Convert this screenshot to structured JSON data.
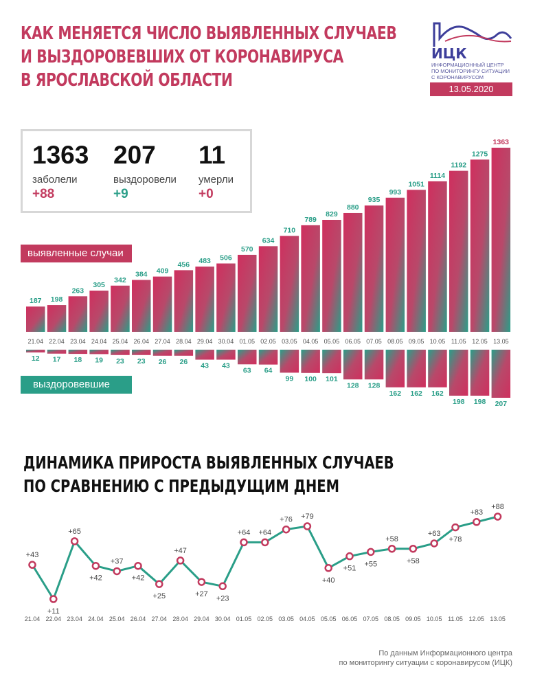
{
  "header": {
    "title_lines": [
      "КАК МЕНЯЕТСЯ ЧИСЛО ВЫЯВЛЕННЫХ СЛУЧАЕВ",
      "И ВЫЗДОРОВЕВШИХ ОТ КОРОНАВИРУСА",
      "В ЯРОСЛАВСКОЙ ОБЛАСТИ"
    ],
    "logo_name": "ИЦК",
    "logo_desc": [
      "информационный центр",
      "по мониторингу ситуации",
      "с коронавирусом"
    ],
    "date": "13.05.2020"
  },
  "stats": {
    "cases": {
      "value": "1363",
      "label": "заболели",
      "delta": "+88"
    },
    "recovered": {
      "value": "207",
      "label": "выздоровели",
      "delta": "+9"
    },
    "deaths": {
      "value": "11",
      "label": "умерли",
      "delta": "+0"
    }
  },
  "badges": {
    "cases": "выявленные случаи",
    "recovered": "выздоровевшие"
  },
  "second_title": [
    "ДИНАМИКА ПРИРОСТА ВЫЯВЛЕННЫХ СЛУЧАЕВ",
    "ПО СРАВНЕНИЮ С ПРЕДЫДУЩИМ ДНЕМ"
  ],
  "source": [
    "По данным Информационного центра",
    "по мониторингу ситуации с коронавирусом (ИЦК)"
  ],
  "colors": {
    "accent": "#c23a5e",
    "teal": "#2a9e88",
    "navy": "#3d3e9a"
  },
  "chart_data": [
    {
      "type": "bar",
      "title": "",
      "categories": [
        "21.04",
        "22.04",
        "23.04",
        "24.04",
        "25.04",
        "26.04",
        "27.04",
        "28.04",
        "29.04",
        "30.04",
        "01.05",
        "02.05",
        "03.05",
        "04.05",
        "05.05",
        "06.05",
        "07.05",
        "08.05",
        "09.05",
        "10.05",
        "11.05",
        "12.05",
        "13.05"
      ],
      "series": [
        {
          "name": "выявленные случаи",
          "values": [
            187,
            198,
            263,
            305,
            342,
            384,
            409,
            456,
            483,
            506,
            570,
            634,
            710,
            789,
            829,
            880,
            935,
            993,
            1051,
            1114,
            1192,
            1275,
            1363
          ]
        },
        {
          "name": "выздоровевшие",
          "values": [
            12,
            17,
            18,
            19,
            23,
            23,
            26,
            26,
            43,
            43,
            63,
            64,
            99,
            100,
            101,
            128,
            128,
            162,
            162,
            162,
            198,
            198,
            207
          ]
        }
      ]
    },
    {
      "type": "line",
      "title": "",
      "categories": [
        "21.04",
        "22.04",
        "23.04",
        "24.04",
        "25.04",
        "26.04",
        "27.04",
        "28.04",
        "29.04",
        "30.04",
        "01.05",
        "02.05",
        "03.05",
        "04.05",
        "05.05",
        "06.05",
        "07.05",
        "08.05",
        "09.05",
        "10.05",
        "11.05",
        "12.05",
        "13.05"
      ],
      "values": [
        43,
        11,
        65,
        42,
        37,
        42,
        25,
        47,
        27,
        23,
        64,
        64,
        76,
        79,
        40,
        51,
        55,
        58,
        58,
        63,
        78,
        83,
        88
      ],
      "labels": [
        "+43",
        "+11",
        "+65",
        "+42",
        "+37",
        "+42",
        "+25",
        "+47",
        "+27",
        "+23",
        "+64",
        "+64",
        "+76",
        "+79",
        "+40",
        "+51",
        "+55",
        "+58",
        "+58",
        "+63",
        "+78",
        "+83",
        "+88"
      ],
      "label_side": [
        "above",
        "below",
        "above",
        "below",
        "above",
        "below",
        "below",
        "above",
        "below",
        "below",
        "above",
        "above",
        "above",
        "above",
        "below",
        "below",
        "below",
        "above",
        "below",
        "above",
        "below",
        "above",
        "above"
      ]
    }
  ]
}
